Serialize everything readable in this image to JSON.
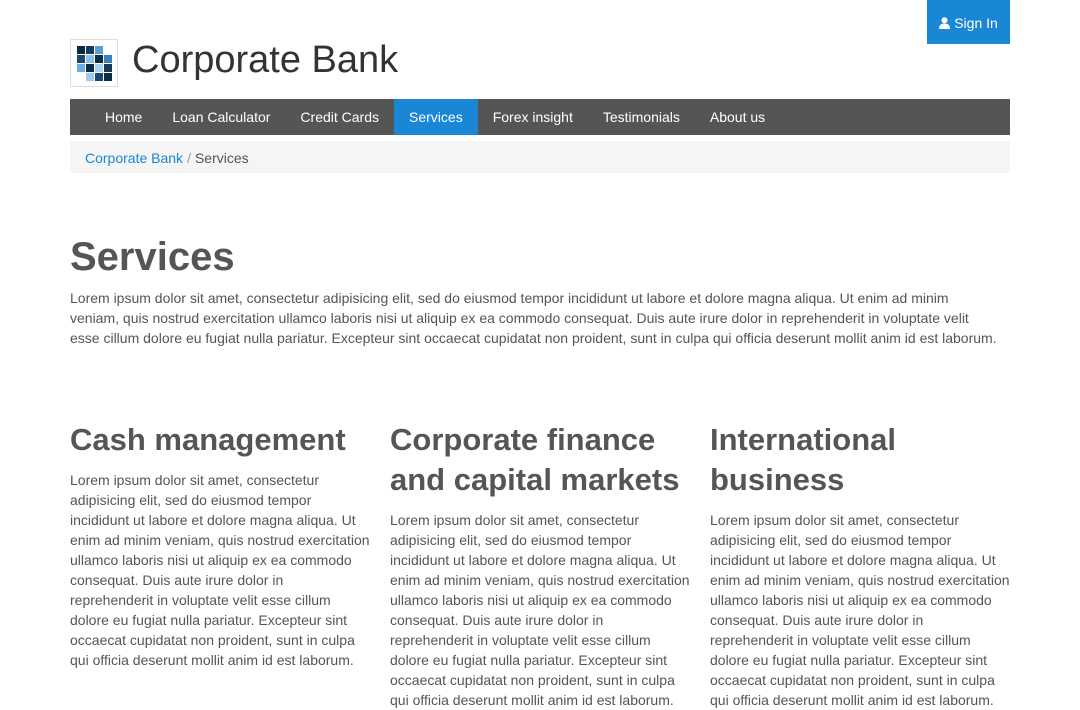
{
  "header": {
    "signin_label": "Sign In",
    "brand": "Corporate Bank"
  },
  "nav": {
    "items": [
      {
        "label": "Home"
      },
      {
        "label": "Loan Calculator"
      },
      {
        "label": "Credit Cards"
      },
      {
        "label": "Services",
        "active": true
      },
      {
        "label": "Forex insight"
      },
      {
        "label": "Testimonials"
      },
      {
        "label": "About us"
      }
    ]
  },
  "breadcrumb": {
    "home": "Corporate Bank",
    "separator": "/",
    "current": "Services"
  },
  "main": {
    "title": "Services",
    "intro": "Lorem ipsum dolor sit amet, consectetur adipisicing elit, sed do eiusmod tempor incididunt ut labore et dolore magna aliqua. Ut enim ad minim veniam, quis nostrud exercitation ullamco laboris nisi ut aliquip ex ea commodo consequat. Duis aute irure dolor in reprehenderit in voluptate velit esse cillum dolore eu fugiat nulla pariatur. Excepteur sint occaecat cupidatat non proident, sunt in culpa qui officia deserunt mollit anim id est laborum.",
    "columns": [
      {
        "heading": "Cash management",
        "text": "Lorem ipsum dolor sit amet, consectetur adipisicing elit, sed do eiusmod tempor incididunt ut labore et dolore magna aliqua. Ut enim ad minim veniam, quis nostrud exercitation ullamco laboris nisi ut aliquip ex ea commodo consequat. Duis aute irure dolor in reprehenderit in voluptate velit esse cillum dolore eu fugiat nulla pariatur. Excepteur sint occaecat cupidatat non proident, sunt in culpa qui officia deserunt mollit anim id est laborum."
      },
      {
        "heading": "Corporate finance and capital markets",
        "text": "Lorem ipsum dolor sit amet, consectetur adipisicing elit, sed do eiusmod tempor incididunt ut labore et dolore magna aliqua. Ut enim ad minim veniam, quis nostrud exercitation ullamco laboris nisi ut aliquip ex ea commodo consequat. Duis aute irure dolor in reprehenderit in voluptate velit esse cillum dolore eu fugiat nulla pariatur. Excepteur sint occaecat cupidatat non proident, sunt in culpa qui officia deserunt mollit anim id est laborum."
      },
      {
        "heading": "International business",
        "text": "Lorem ipsum dolor sit amet, consectetur adipisicing elit, sed do eiusmod tempor incididunt ut labore et dolore magna aliqua. Ut enim ad minim veniam, quis nostrud exercitation ullamco laboris nisi ut aliquip ex ea commodo consequat. Duis aute irure dolor in reprehenderit in voluptate velit esse cillum dolore eu fugiat nulla pariatur. Excepteur sint occaecat cupidatat non proident, sunt in culpa qui officia deserunt mollit anim id est laborum."
      }
    ]
  },
  "icons": {
    "signin": "user-icon",
    "logo": "bank-logo-icon"
  },
  "colors": {
    "accent": "#1a86d6",
    "navbar": "#555555",
    "breadcrumb_bg": "#f5f5f5",
    "text": "#555555"
  }
}
